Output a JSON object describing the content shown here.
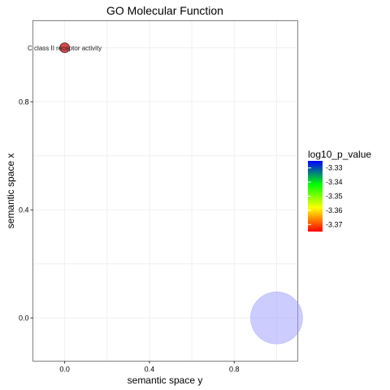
{
  "chart_data": {
    "type": "scatter",
    "title": "GO Molecular Function",
    "xlabel": "semantic space y",
    "ylabel": "semantic space x",
    "xlim": [
      -0.15,
      1.1
    ],
    "ylim": [
      -0.16,
      1.1
    ],
    "grid": true,
    "x_ticks": [
      0.0,
      0.4,
      0.8
    ],
    "x_tick_labels": [
      "0.0",
      "0.4",
      "0.8"
    ],
    "y_ticks": [
      0.0,
      0.4,
      0.8
    ],
    "y_tick_labels": [
      "0.0",
      "0.4",
      "0.8"
    ],
    "points": [
      {
        "x": 0.0,
        "y": 1.0,
        "label": "C class II receptor activity",
        "log10_p_value": -3.38,
        "color": "#d9191a",
        "size_rank": 1
      },
      {
        "x": 1.0,
        "y": 0.0,
        "label": "",
        "log10_p_value": -3.33,
        "color": "#9999ff",
        "size_rank": 8
      }
    ],
    "legend": {
      "title": "log10_p_value",
      "placement": "right",
      "range": [
        -3.375,
        -3.325
      ],
      "labels": [
        "-3.33",
        "-3.34",
        "-3.35",
        "-3.36",
        "-3.37"
      ],
      "label_values": [
        -3.33,
        -3.34,
        -3.35,
        -3.36,
        -3.37
      ],
      "gradient_colors": [
        "#0000ff",
        "#00ff00",
        "#ffff00",
        "#ff0000"
      ]
    }
  }
}
